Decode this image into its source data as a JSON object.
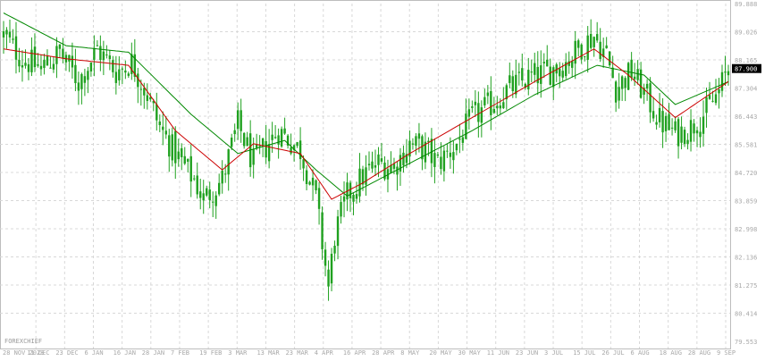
{
  "watermark": "FOREXCHIEF",
  "colors": {
    "background": "#ffffff",
    "grid": "#d8d8d8",
    "candle": "#1fa11f",
    "ma_fast": "#cc0000",
    "ma_slow": "#008800",
    "price_tag_bg": "#000000",
    "price_tag_text": "#ffffff",
    "axis_text": "#a8a8a8"
  },
  "chart_data": {
    "type": "candlestick",
    "title": "",
    "xlabel": "",
    "ylabel": "",
    "ylim": [
      79.553,
      89.888
    ],
    "y_ticks": [
      "89.888",
      "89.026",
      "88.165",
      "87.304",
      "86.443",
      "85.581",
      "84.720",
      "83.859",
      "82.998",
      "82.136",
      "81.275",
      "80.414",
      "79.553"
    ],
    "x_ticks": [
      "28 NOV 2023",
      "11 DEC",
      "23 DEC",
      "6 JAN",
      "16 JAN",
      "28 JAN",
      "7 FEB",
      "19 FEB",
      "3 MAR",
      "13 MAR",
      "23 MAR",
      "4 APR",
      "16 APR",
      "28 APR",
      "8 MAY",
      "20 MAY",
      "30 MAY",
      "11 JUN",
      "23 JUN",
      "3 JUL",
      "15 JUL",
      "26 JUL",
      "6 AUG",
      "18 AUG",
      "28 AUG",
      "9 SEP"
    ],
    "current_price": "87.900",
    "grid": true,
    "close_path": [
      [
        0,
        88.9
      ],
      [
        6,
        88.2
      ],
      [
        12,
        87.9
      ],
      [
        18,
        88.4
      ],
      [
        24,
        87.5
      ],
      [
        30,
        88.5
      ],
      [
        36,
        87.8
      ],
      [
        41,
        88.1
      ],
      [
        46,
        87.1
      ],
      [
        50,
        86.1
      ],
      [
        55,
        85.3
      ],
      [
        61,
        84.5
      ],
      [
        64,
        83.9
      ],
      [
        70,
        84.5
      ],
      [
        75,
        86.2
      ],
      [
        80,
        85.0
      ],
      [
        83,
        85.4
      ],
      [
        88,
        86.0
      ],
      [
        95,
        85.4
      ],
      [
        100,
        83.9
      ],
      [
        104,
        81.2
      ],
      [
        106,
        82.8
      ],
      [
        110,
        84.0
      ],
      [
        115,
        84.6
      ],
      [
        120,
        85.0
      ],
      [
        125,
        84.9
      ],
      [
        130,
        85.6
      ],
      [
        135,
        85.4
      ],
      [
        139,
        85.0
      ],
      [
        145,
        85.6
      ],
      [
        150,
        86.4
      ],
      [
        156,
        86.8
      ],
      [
        162,
        87.3
      ],
      [
        168,
        87.6
      ],
      [
        174,
        87.8
      ],
      [
        180,
        88.1
      ],
      [
        185,
        88.6
      ],
      [
        189,
        88.9
      ],
      [
        193,
        88.3
      ],
      [
        196,
        87.3
      ],
      [
        201,
        87.8
      ],
      [
        206,
        87.0
      ],
      [
        210,
        86.3
      ],
      [
        215,
        85.9
      ],
      [
        220,
        86.1
      ],
      [
        225,
        86.6
      ],
      [
        229,
        87.2
      ],
      [
        232,
        87.9
      ]
    ],
    "ma_fast_path": [
      [
        0,
        88.5
      ],
      [
        20,
        88.2
      ],
      [
        40,
        88.0
      ],
      [
        55,
        86.0
      ],
      [
        70,
        84.8
      ],
      [
        80,
        85.6
      ],
      [
        95,
        85.3
      ],
      [
        105,
        83.9
      ],
      [
        115,
        84.4
      ],
      [
        130,
        85.3
      ],
      [
        150,
        86.4
      ],
      [
        170,
        87.5
      ],
      [
        189,
        88.5
      ],
      [
        200,
        87.7
      ],
      [
        215,
        86.4
      ],
      [
        232,
        87.5
      ]
    ],
    "ma_slow_path": [
      [
        0,
        89.6
      ],
      [
        20,
        88.6
      ],
      [
        40,
        88.4
      ],
      [
        60,
        86.5
      ],
      [
        75,
        85.3
      ],
      [
        90,
        85.7
      ],
      [
        100,
        84.8
      ],
      [
        110,
        84.0
      ],
      [
        130,
        85.0
      ],
      [
        150,
        86.0
      ],
      [
        170,
        87.1
      ],
      [
        190,
        88.0
      ],
      [
        205,
        87.7
      ],
      [
        215,
        86.8
      ],
      [
        232,
        87.5
      ]
    ]
  }
}
